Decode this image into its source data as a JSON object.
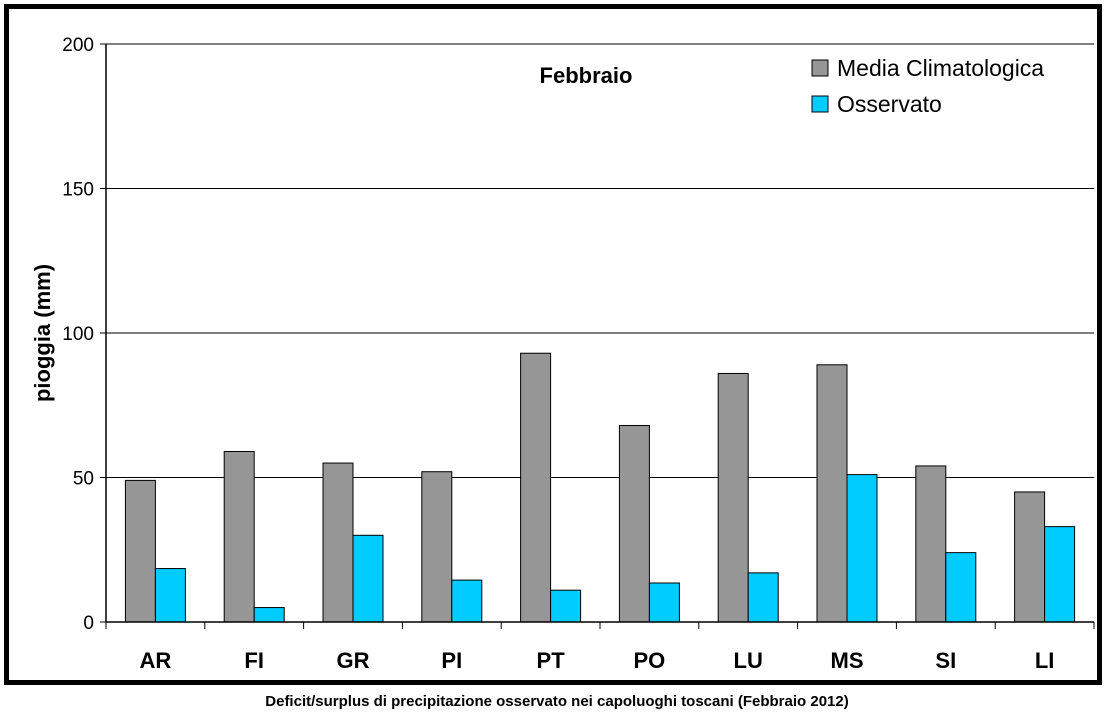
{
  "chart_data": {
    "type": "bar",
    "title": "Febbraio",
    "ylabel": "pioggia (mm)",
    "xlabel": "",
    "ylim": [
      0,
      200
    ],
    "yticks": [
      0,
      50,
      100,
      150,
      200
    ],
    "grid": true,
    "legend_position": "top-right",
    "categories": [
      "AR",
      "FI",
      "GR",
      "PI",
      "PT",
      "PO",
      "LU",
      "MS",
      "SI",
      "LI"
    ],
    "series": [
      {
        "name": "Media Climatologica",
        "color": "#969696",
        "values": [
          49,
          59,
          55,
          52,
          93,
          68,
          86,
          89,
          54,
          45
        ]
      },
      {
        "name": "Osservato",
        "color": "#00CCFF",
        "values": [
          18.5,
          5,
          30,
          14.5,
          11,
          13.5,
          17,
          51,
          24,
          33
        ]
      }
    ]
  },
  "caption": "Deficit/surplus di precipitazione osservato nei capoluoghi toscani (Febbraio 2012)"
}
